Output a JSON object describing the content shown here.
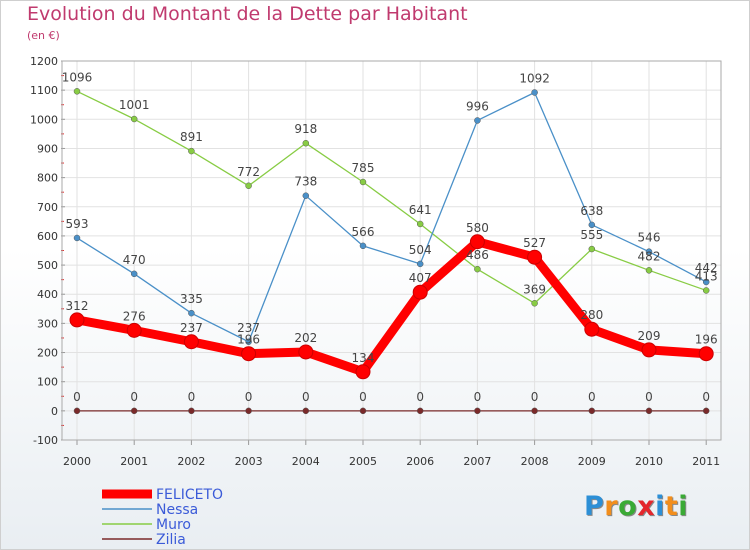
{
  "title": "Evolution du Montant de la Dette par Habitant",
  "subtitle": "(en €)",
  "logo": {
    "letters": [
      "P",
      "r",
      "o",
      "x",
      "i",
      "t",
      "i"
    ],
    "colors": [
      "#2c8fd6",
      "#f28e1c",
      "#3aaa35",
      "#e4262c",
      "#2c8fd6",
      "#f28e1c",
      "#3aaa35"
    ]
  },
  "chart_data": {
    "type": "line",
    "title": "Evolution du Montant de la Dette par Habitant",
    "subtitle": "(en €)",
    "x": [
      "2000",
      "2001",
      "2002",
      "2003",
      "2004",
      "2005",
      "2006",
      "2007",
      "2008",
      "2009",
      "2010",
      "2011"
    ],
    "ylim": [
      -100,
      1200
    ],
    "yticks": [
      -100,
      0,
      100,
      200,
      300,
      400,
      500,
      600,
      700,
      800,
      900,
      1000,
      1100,
      1200
    ],
    "grid": true,
    "legend": "bottom-left",
    "series": [
      {
        "name": "FELICETO",
        "color": "#ff0000",
        "values": [
          312,
          276,
          237,
          196,
          202,
          134,
          407,
          580,
          527,
          280,
          209,
          196
        ]
      },
      {
        "name": "Nessa",
        "color": "#4a90c8",
        "values": [
          593,
          470,
          335,
          237,
          738,
          566,
          504,
          996,
          1092,
          638,
          546,
          442
        ]
      },
      {
        "name": "Muro",
        "color": "#88cc44",
        "values": [
          1096,
          1001,
          891,
          772,
          918,
          785,
          641,
          486,
          369,
          555,
          482,
          413
        ]
      },
      {
        "name": "Zilia",
        "color": "#7a2a2a",
        "values": [
          0,
          0,
          0,
          0,
          0,
          0,
          0,
          0,
          0,
          0,
          0,
          0
        ]
      }
    ]
  }
}
